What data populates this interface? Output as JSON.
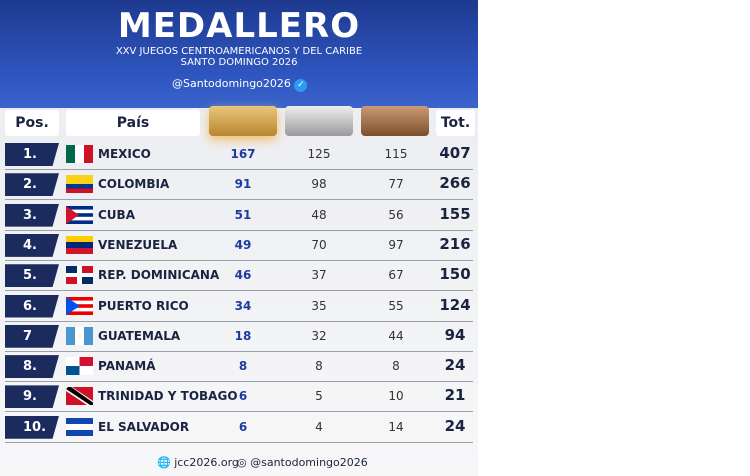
{
  "header": {
    "title": "MEDALLERO",
    "subtitle_1": "XXV JUEGOS CENTROAMERICANOS Y DEL CARIBE",
    "subtitle_2": "SANTO DOMINGO 2026",
    "handle": "@Santodomingo2026"
  },
  "table": {
    "columns": {
      "pos": "Pos.",
      "country": "País",
      "total": "Tot."
    },
    "rows": [
      {
        "pos": "1.",
        "country": "MEXICO",
        "gold": 167,
        "silver": 125,
        "bronze": 115,
        "total": 407
      },
      {
        "pos": "2.",
        "country": "COLOMBIA",
        "gold": 91,
        "silver": 98,
        "bronze": 77,
        "total": 266
      },
      {
        "pos": "3.",
        "country": "CUBA",
        "gold": 51,
        "silver": 48,
        "bronze": 56,
        "total": 155
      },
      {
        "pos": "4.",
        "country": "VENEZUELA",
        "gold": 49,
        "silver": 70,
        "bronze": 97,
        "total": 216
      },
      {
        "pos": "5.",
        "country": "REP. DOMINICANA",
        "gold": 46,
        "silver": 37,
        "bronze": 67,
        "total": 150
      },
      {
        "pos": "6.",
        "country": "PUERTO RICO",
        "gold": 34,
        "silver": 35,
        "bronze": 55,
        "total": 124
      },
      {
        "pos": "7",
        "country": "GUATEMALA",
        "gold": 18,
        "silver": 32,
        "bronze": 44,
        "total": 94
      },
      {
        "pos": "8.",
        "country": "PANAMÁ",
        "gold": 8,
        "silver": 8,
        "bronze": 8,
        "total": 24
      },
      {
        "pos": "9.",
        "country": "TRINIDAD Y TOBAGO",
        "gold": 6,
        "silver": 5,
        "bronze": 10,
        "total": 21
      },
      {
        "pos": "10.",
        "country": "EL SALVADOR",
        "gold": 6,
        "silver": 4,
        "bronze": 14,
        "total": 24
      }
    ]
  },
  "footer": {
    "website": "jcc2026.org",
    "social": "@santodomingo2026"
  }
}
